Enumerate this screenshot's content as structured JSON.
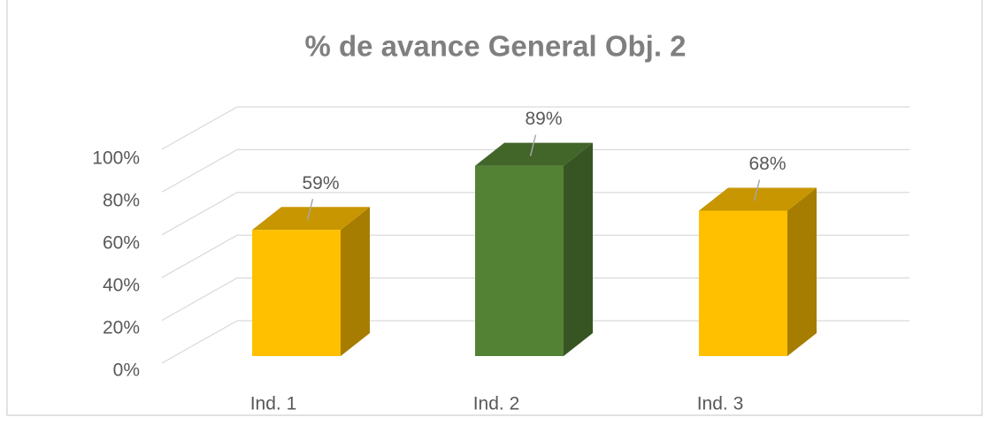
{
  "chart_data": {
    "type": "bar3d",
    "title": "% de avance General Obj. 2",
    "categories": [
      "Ind. 1",
      "Ind. 2",
      "Ind. 3"
    ],
    "values": [
      59,
      89,
      68
    ],
    "value_labels": [
      "59%",
      "89%",
      "68%"
    ],
    "colors": [
      "#FFC000",
      "#548235",
      "#FFC000"
    ],
    "ylim": [
      0,
      100
    ],
    "yticks": [
      {
        "value": 0,
        "label": "0%"
      },
      {
        "value": 20,
        "label": "20%"
      },
      {
        "value": 40,
        "label": "40%"
      },
      {
        "value": 60,
        "label": "60%"
      },
      {
        "value": 80,
        "label": "80%"
      },
      {
        "value": 100,
        "label": "100%"
      }
    ],
    "grid": true
  }
}
